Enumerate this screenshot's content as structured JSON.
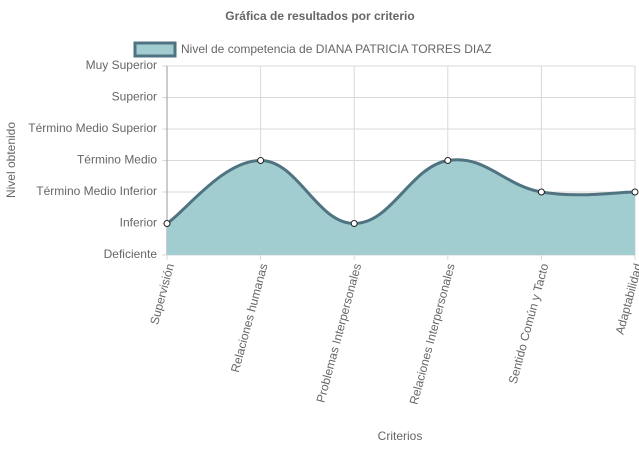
{
  "chart_data": {
    "type": "line",
    "title": "Gráfica de resultados por criterio",
    "x_label": "Criterios",
    "y_label": "Nivel obtenido",
    "categories": [
      "Supervisión",
      "Relaciones humanas",
      "Problemas Interpersonales",
      "Relaciones Interpersonales",
      "Sentido Común y Tacto",
      "Adaptabilidad"
    ],
    "series": [
      {
        "name": "Nivel de competencia de DIANA PATRICIA TORRES DIAZ",
        "color": "#4f7380",
        "fill": "#a2cdd0",
        "values": [
          1,
          3,
          1,
          3,
          2,
          2
        ]
      }
    ],
    "ylim": [
      0,
      6
    ],
    "yticks": [
      {
        "value": 0,
        "label": "Deficiente"
      },
      {
        "value": 1,
        "label": "Inferior"
      },
      {
        "value": 2,
        "label": "Término Medio Inferior"
      },
      {
        "value": 3,
        "label": "Término Medio"
      },
      {
        "value": 4,
        "label": "Término Medio Superior"
      },
      {
        "value": 5,
        "label": "Superior"
      },
      {
        "value": 6,
        "label": "Muy Superior"
      }
    ],
    "grid": true
  }
}
